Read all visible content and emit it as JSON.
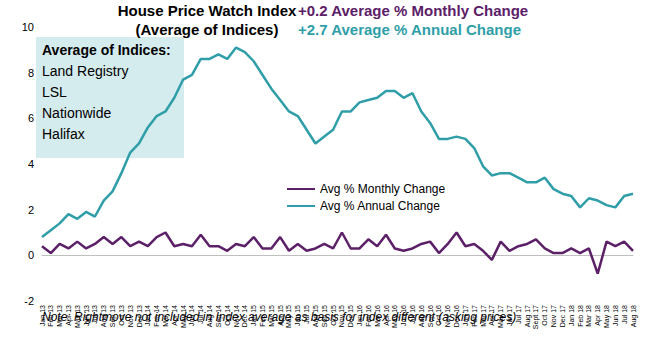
{
  "chart_data": {
    "type": "line",
    "title": [
      "House Price Watch Index",
      "(Average of Indices)"
    ],
    "annotations": [
      {
        "text": "+0.2 Average % Monthly Change",
        "color": "#5c2068"
      },
      {
        "text": "+2.7 Average % Annual Change",
        "color": "#2f9ea8"
      }
    ],
    "box": [
      "Average of Indices:",
      "Land Registry",
      "LSL",
      "Nationwide",
      "Halifax"
    ],
    "note": "Note: Rightmove not included in Index average as basis for index different (asking prices)",
    "categories": [
      "Jan 13",
      "Feb 13",
      "Mar 13",
      "Apr 13",
      "May 13",
      "Jun 13",
      "Jul 13",
      "Aug 13",
      "Sep 13",
      "Oct 13",
      "Nov 13",
      "Dec 13",
      "Jan 14",
      "Feb 14",
      "Mar 14",
      "Apr 14",
      "May 14",
      "Jun 14",
      "Jul 14",
      "Aug 14",
      "Sep 14",
      "Oct 14",
      "Nov 14",
      "Dec 14",
      "Jan 15",
      "Feb 15",
      "Mar 15",
      "Apr 15",
      "May 15",
      "Jun 15",
      "Jul 15",
      "Aug 15",
      "Sep 15",
      "Oct 15",
      "Nov 15",
      "Dec 15",
      "Jan 16",
      "Feb 16",
      "Mar 16",
      "Apr 16",
      "May 16",
      "Jun 16",
      "Jul 16",
      "Aug 16",
      "Sep 16",
      "Oct 16",
      "Nov 16",
      "Dec 16",
      "Jan 17",
      "Feb 17",
      "Mar 17",
      "Apr 17",
      "May 17",
      "Jun 17",
      "Jul 17",
      "Aug 17",
      "Sept 17",
      "Oct 17",
      "Nov 17",
      "Dec 17",
      "Jan 18",
      "Feb 18",
      "Mar 18",
      "Apr 18",
      "May 18",
      "Jun 18",
      "Jul 18",
      "Aug 18"
    ],
    "series": [
      {
        "name": "Avg % Monthly Change",
        "color": "#5c2068",
        "values": [
          0.4,
          0.1,
          0.5,
          0.3,
          0.6,
          0.3,
          0.5,
          0.8,
          0.5,
          0.8,
          0.4,
          0.6,
          0.4,
          0.8,
          1.0,
          0.4,
          0.5,
          0.4,
          0.9,
          0.4,
          0.4,
          0.2,
          0.5,
          0.4,
          0.8,
          0.3,
          0.3,
          0.8,
          0.2,
          0.5,
          0.2,
          0.3,
          0.5,
          0.3,
          1.0,
          0.3,
          0.3,
          0.7,
          0.4,
          0.9,
          0.3,
          0.2,
          0.3,
          0.5,
          0.6,
          0.1,
          0.5,
          1.0,
          0.4,
          0.5,
          0.2,
          -0.2,
          0.6,
          0.2,
          0.4,
          0.5,
          0.7,
          0.3,
          0.1,
          0.1,
          0.3,
          0.1,
          0.3,
          -0.8,
          0.6,
          0.4,
          0.6,
          0.2
        ]
      },
      {
        "name": "Avg % Annual Change",
        "color": "#2f9ea8",
        "values": [
          0.8,
          1.1,
          1.4,
          1.8,
          1.6,
          1.9,
          1.7,
          2.4,
          2.8,
          3.6,
          4.5,
          4.9,
          5.6,
          6.1,
          6.3,
          6.9,
          7.7,
          7.9,
          8.6,
          8.6,
          8.8,
          8.6,
          9.1,
          8.9,
          8.5,
          7.9,
          7.3,
          6.8,
          6.3,
          6.1,
          5.5,
          4.9,
          5.2,
          5.5,
          6.3,
          6.3,
          6.7,
          6.8,
          6.9,
          7.2,
          7.2,
          6.9,
          7.1,
          6.3,
          5.8,
          5.1,
          5.1,
          5.2,
          5.1,
          4.7,
          3.9,
          3.5,
          3.6,
          3.6,
          3.4,
          3.2,
          3.2,
          3.4,
          2.9,
          2.7,
          2.6,
          2.1,
          2.5,
          2.4,
          2.2,
          2.1,
          2.6,
          2.7
        ]
      }
    ],
    "ylim": [
      -2,
      10
    ],
    "yticks": [
      -2,
      0,
      2,
      4,
      6,
      8,
      10
    ],
    "grid": false,
    "legend": "inside",
    "marker": "none",
    "line_style": "solid"
  }
}
